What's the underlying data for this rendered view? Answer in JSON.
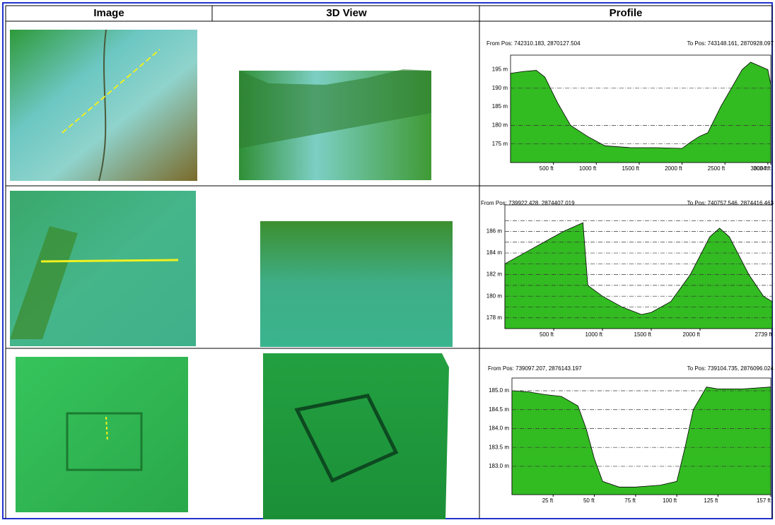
{
  "table": {
    "header": [
      "Image",
      "3D View",
      "Profile"
    ],
    "rows": [
      {
        "profile": {
          "type": "area",
          "from": "From Pos: 742310.183, 2870127.504",
          "to": "To Pos: 743148.161, 2870928.097",
          "x": [
            0,
            150,
            300,
            400,
            550,
            700,
            900,
            1100,
            1400,
            1700,
            2000,
            2100,
            2200,
            2300,
            2450,
            2600,
            2700,
            2800,
            2900,
            3000,
            3034
          ],
          "values": [
            194,
            194.5,
            194.8,
            193,
            186,
            180,
            177,
            174.5,
            174,
            174,
            173.8,
            175.5,
            177,
            178,
            185,
            191,
            195,
            197,
            196,
            195,
            191
          ],
          "color": "#33bb22",
          "xlim": [
            0,
            3034
          ],
          "ylim": [
            170,
            197
          ],
          "xticks": [
            {
              "value": 500,
              "label": "500 ft"
            },
            {
              "value": 1000,
              "label": "1000 ft"
            },
            {
              "value": 1500,
              "label": "1500 ft"
            },
            {
              "value": 2000,
              "label": "2000 ft"
            },
            {
              "value": 2500,
              "label": "2500 ft"
            },
            {
              "value": 3000,
              "label": "3000 ft"
            },
            {
              "value": 3034,
              "label": "3034 ft"
            }
          ],
          "yticks": [
            {
              "value": 195,
              "label": "195 m"
            },
            {
              "value": 190,
              "label": "190 m"
            },
            {
              "value": 185,
              "label": "185 m"
            },
            {
              "value": 180,
              "label": "180 m"
            },
            {
              "value": 175,
              "label": "175 m"
            }
          ],
          "grid": [
            190,
            180,
            175
          ]
        }
      },
      {
        "profile": {
          "type": "area",
          "from": "From Pos: 739922.428, 2874407.019",
          "to": "To Pos: 740757.546, 2874416.463",
          "x": [
            0,
            200,
            400,
            600,
            800,
            850,
            1000,
            1200,
            1400,
            1500,
            1700,
            1900,
            2100,
            2200,
            2300,
            2500,
            2650,
            2739
          ],
          "values": [
            183,
            184,
            185,
            186,
            186.8,
            181,
            180,
            179,
            178.3,
            178.5,
            179.5,
            182,
            185.5,
            186.3,
            185.5,
            182,
            180,
            179.5
          ],
          "color": "#33bb22",
          "xlim": [
            0,
            2739
          ],
          "ylim": [
            177,
            187.8
          ],
          "xticks": [
            {
              "value": 500,
              "label": "500 ft"
            },
            {
              "value": 1000,
              "label": "1000 ft"
            },
            {
              "value": 1500,
              "label": "1500 ft"
            },
            {
              "value": 2000,
              "label": "2000 ft"
            },
            {
              "value": 2739,
              "label": "2739 ft"
            }
          ],
          "yticks": [
            {
              "value": 186,
              "label": "186 m"
            },
            {
              "value": 184,
              "label": "184 m"
            },
            {
              "value": 182,
              "label": "182 m"
            },
            {
              "value": 180,
              "label": "180 m"
            },
            {
              "value": 178,
              "label": "178 m"
            }
          ],
          "grid": [
            187,
            186,
            185,
            184,
            183,
            182,
            181,
            180,
            179,
            178
          ]
        }
      },
      {
        "profile": {
          "type": "area",
          "from": "From Pos: 739097.207, 2876143.197",
          "to": "To Pos: 739104.735, 2876096.024",
          "x": [
            0,
            10,
            20,
            30,
            40,
            45,
            50,
            55,
            65,
            75,
            90,
            100,
            105,
            110,
            118,
            125,
            140,
            157
          ],
          "values": [
            185.0,
            184.97,
            184.9,
            184.85,
            184.6,
            184.0,
            183.2,
            182.6,
            182.45,
            182.45,
            182.5,
            182.6,
            183.5,
            184.5,
            185.1,
            185.05,
            185.05,
            185.1
          ],
          "color": "#33bb22",
          "xlim": [
            0,
            157
          ],
          "ylim": [
            182.25,
            185.15
          ],
          "xticks": [
            {
              "value": 25,
              "label": "25 ft"
            },
            {
              "value": 50,
              "label": "50 ft"
            },
            {
              "value": 75,
              "label": "75 ft"
            },
            {
              "value": 100,
              "label": "100 ft"
            },
            {
              "value": 125,
              "label": "125 ft"
            },
            {
              "value": 157,
              "label": "157 ft"
            }
          ],
          "yticks": [
            {
              "value": 185.0,
              "label": "185.0 m"
            },
            {
              "value": 184.5,
              "label": "184.5 m"
            },
            {
              "value": 184.0,
              "label": "184.0 m"
            },
            {
              "value": 183.5,
              "label": "183.5 m"
            },
            {
              "value": 183.0,
              "label": "183.0 m"
            }
          ],
          "grid": [
            185.0,
            184.5,
            184.0,
            183.5,
            183.0
          ]
        }
      }
    ]
  }
}
